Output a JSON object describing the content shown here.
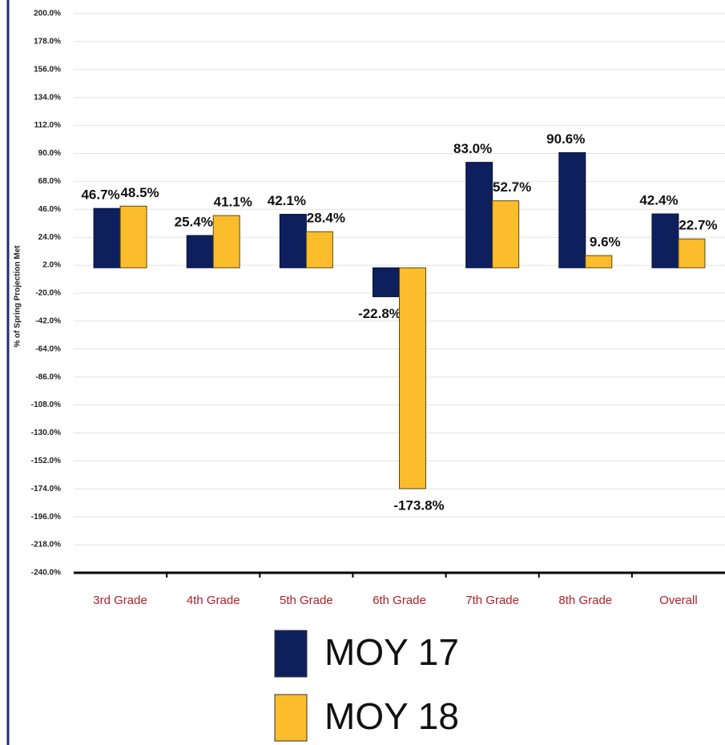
{
  "chart_data": {
    "type": "bar",
    "y_axis_label": "% of Spring Projection Met",
    "categories": [
      "3rd Grade",
      "4th Grade",
      "5th Grade",
      "6th Grade",
      "7th Grade",
      "8th Grade",
      "Overall"
    ],
    "series": [
      {
        "name": "MOY 17",
        "color": "#0d1f5c",
        "values": [
          46.7,
          25.4,
          42.1,
          -22.8,
          83.0,
          90.6,
          42.4
        ],
        "value_labels": [
          "46.7%",
          "25.4%",
          "42.1%",
          "-22.8%",
          "83.0%",
          "90.6%",
          "42.4%"
        ]
      },
      {
        "name": "MOY 18",
        "color": "#fbbd2c",
        "values": [
          48.5,
          41.1,
          28.4,
          -173.8,
          52.7,
          9.6,
          22.7
        ],
        "value_labels": [
          "48.5%",
          "41.1%",
          "28.4%",
          "-173.8%",
          "52.7%",
          "9.6%",
          "22.7%"
        ]
      }
    ],
    "ylim": [
      -240,
      200
    ],
    "yticks": [
      {
        "value": 200,
        "label": "200.0%"
      },
      {
        "value": 178,
        "label": "178.0%"
      },
      {
        "value": 156,
        "label": "156.0%"
      },
      {
        "value": 134,
        "label": "134.0%"
      },
      {
        "value": 112,
        "label": "112.0%"
      },
      {
        "value": 90,
        "label": "90.0%"
      },
      {
        "value": 68,
        "label": "68.0%"
      },
      {
        "value": 46,
        "label": "46.0%"
      },
      {
        "value": 24,
        "label": "24.0%"
      },
      {
        "value": 2,
        "label": "2.0%"
      },
      {
        "value": -20,
        "label": "-20.0%"
      },
      {
        "value": -42,
        "label": "-42.0%"
      },
      {
        "value": -64,
        "label": "-64.0%"
      },
      {
        "value": -86,
        "label": "-86.0%"
      },
      {
        "value": -108,
        "label": "-108.0%"
      },
      {
        "value": -130,
        "label": "-130.0%"
      },
      {
        "value": -152,
        "label": "-152.0%"
      },
      {
        "value": -174,
        "label": "-174.0%"
      },
      {
        "value": -196,
        "label": "-196.0%"
      },
      {
        "value": -218,
        "label": "-218.0%"
      },
      {
        "value": -240,
        "label": "-240.0%"
      }
    ],
    "grid": true
  }
}
